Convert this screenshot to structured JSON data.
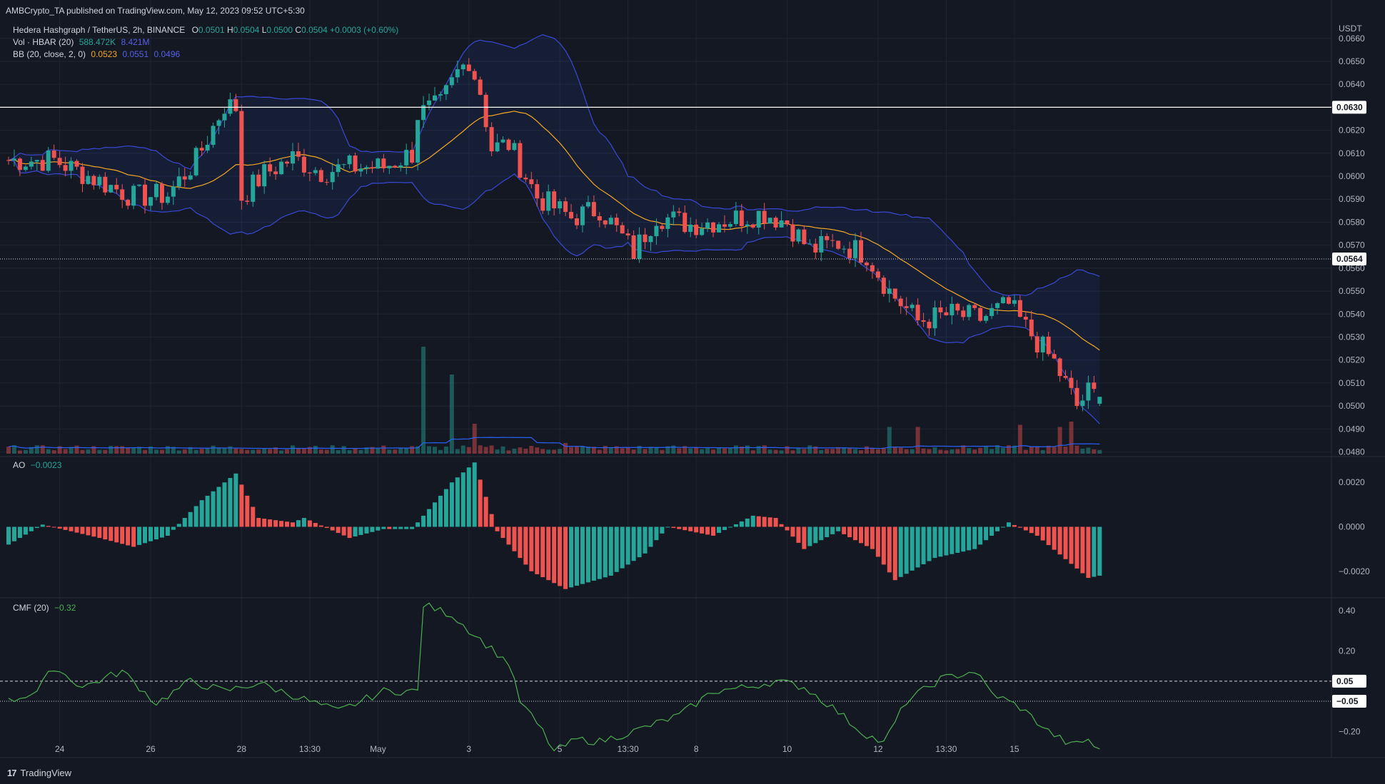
{
  "header": {
    "publisher": "AMBCrypto_TA published on TradingView.com, May 12, 2023 09:52 UTC+5:30",
    "symbol": "Hedera Hashgraph / TetherUS, 2h, BINANCE",
    "o_label": "O",
    "o": "0.0501",
    "h_label": "H",
    "h": "0.0504",
    "l_label": "L",
    "l": "0.0500",
    "c_label": "C",
    "c": "0.0504",
    "change": "+0.0003 (+0.60%)"
  },
  "indicators": {
    "vol_label": "Vol · HBAR (20)",
    "vol_value": "588.472K",
    "vol_ma": "8.421M",
    "bb_label": "BB (20, close, 2, 0)",
    "bb_basis": "0.0523",
    "bb_upper": "0.0551",
    "bb_lower": "0.0496",
    "ao_label": "AO",
    "ao_value": "−0.0023",
    "cmf_label": "CMF (20)",
    "cmf_value": "−0.32"
  },
  "axes": {
    "currency": "USDT",
    "price_ticks": [
      "0.0660",
      "0.0650",
      "0.0640",
      "0.0620",
      "0.0610",
      "0.0600",
      "0.0590",
      "0.0580",
      "0.0570",
      "0.0560",
      "0.0550",
      "0.0540",
      "0.0530",
      "0.0520",
      "0.0510",
      "0.0500",
      "0.0490",
      "0.0480"
    ],
    "ao_ticks": [
      "0.0020",
      "0.0000",
      "−0.0020"
    ],
    "cmf_ticks": [
      "0.40",
      "0.20",
      "−0.20"
    ],
    "time_labels": [
      "24",
      "26",
      "28",
      "13:30",
      "May",
      "3",
      "5",
      "13:30",
      "8",
      "10",
      "12",
      "13:30",
      "15"
    ]
  },
  "lines": {
    "resistance_label": "0.0630",
    "support_label": "0.0564",
    "cmf_upper_label": "0.05",
    "cmf_lower_label": "−0.05"
  },
  "colors": {
    "bg": "#141823",
    "up": "#26a69a",
    "down": "#ef5350",
    "bb_band": "#3949d6",
    "bb_basis": "#f5a623",
    "cmf": "#4caf50"
  },
  "branding": {
    "logo_text": "TradingView"
  },
  "chart_data": {
    "type": "candlestick",
    "timeframe": "2h",
    "price_ylim": [
      0.0478,
      0.0668
    ],
    "ao_ylim": [
      -0.0031,
      0.0031
    ],
    "cmf_ylim": [
      -0.33,
      0.45
    ],
    "resistance": 0.063,
    "support": 0.0564,
    "cmf_levels": [
      0.05,
      -0.05
    ],
    "keypoints": [
      [
        0,
        0.0607
      ],
      [
        8,
        0.0607
      ],
      [
        15,
        0.0599
      ],
      [
        22,
        0.0591
      ],
      [
        28,
        0.0592
      ],
      [
        33,
        0.0607
      ],
      [
        38,
        0.0631
      ],
      [
        40,
        0.063
      ],
      [
        41,
        0.0591
      ],
      [
        45,
        0.0601
      ],
      [
        50,
        0.0608
      ],
      [
        55,
        0.0602
      ],
      [
        60,
        0.0604
      ],
      [
        66,
        0.0604
      ],
      [
        71,
        0.061
      ],
      [
        72,
        0.0627
      ],
      [
        76,
        0.0631
      ],
      [
        79,
        0.0645
      ],
      [
        81,
        0.0651
      ],
      [
        83,
        0.0637
      ],
      [
        85,
        0.0612
      ],
      [
        88,
        0.0614
      ],
      [
        93,
        0.0591
      ],
      [
        99,
        0.0582
      ],
      [
        104,
        0.0586
      ],
      [
        110,
        0.0567
      ],
      [
        114,
        0.0583
      ],
      [
        120,
        0.0579
      ],
      [
        126,
        0.0581
      ],
      [
        133,
        0.0584
      ],
      [
        137,
        0.058
      ],
      [
        141,
        0.0568
      ],
      [
        146,
        0.0571
      ],
      [
        151,
        0.0566
      ],
      [
        155,
        0.055
      ],
      [
        160,
        0.0537
      ],
      [
        166,
        0.054
      ],
      [
        171,
        0.0538
      ],
      [
        176,
        0.0544
      ],
      [
        179,
        0.0534
      ],
      [
        184,
        0.0519
      ],
      [
        188,
        0.05
      ],
      [
        190,
        0.0506
      ],
      [
        192,
        0.0504
      ]
    ],
    "vol_spikes": [
      [
        73,
        1.0
      ],
      [
        78,
        0.74
      ],
      [
        82,
        0.28
      ],
      [
        98,
        0.1
      ],
      [
        155,
        0.25
      ],
      [
        160,
        0.25
      ],
      [
        178,
        0.27
      ],
      [
        185,
        0.25
      ],
      [
        187,
        0.3
      ]
    ],
    "ao_keypoints": [
      [
        0,
        -0.0008
      ],
      [
        6,
        0.0001
      ],
      [
        16,
        -0.0005
      ],
      [
        22,
        -0.0009
      ],
      [
        28,
        -0.0004
      ],
      [
        34,
        0.0012
      ],
      [
        40,
        0.0024
      ],
      [
        44,
        0.0004
      ],
      [
        50,
        0.0002
      ],
      [
        52,
        0.0004
      ],
      [
        60,
        -0.0005
      ],
      [
        66,
        -0.0001
      ],
      [
        71,
        -0.0001
      ],
      [
        78,
        0.002
      ],
      [
        82,
        0.0029
      ],
      [
        86,
        -0.0002
      ],
      [
        92,
        -0.002
      ],
      [
        98,
        -0.0028
      ],
      [
        106,
        -0.0022
      ],
      [
        112,
        -0.0012
      ],
      [
        116,
        0.0
      ],
      [
        124,
        -0.0004
      ],
      [
        131,
        0.0005
      ],
      [
        135,
        0.0004
      ],
      [
        140,
        -0.001
      ],
      [
        146,
        -0.0002
      ],
      [
        152,
        -0.001
      ],
      [
        156,
        -0.0024
      ],
      [
        163,
        -0.0014
      ],
      [
        170,
        -0.001
      ],
      [
        176,
        0.0002
      ],
      [
        181,
        -0.0004
      ],
      [
        190,
        -0.0023
      ],
      [
        192,
        -0.0022
      ]
    ],
    "cmf_keypoints": [
      [
        0,
        -0.05
      ],
      [
        5,
        0.0
      ],
      [
        8,
        0.12
      ],
      [
        13,
        0.02
      ],
      [
        20,
        0.1
      ],
      [
        26,
        -0.06
      ],
      [
        32,
        0.05
      ],
      [
        38,
        0.0
      ],
      [
        44,
        0.04
      ],
      [
        50,
        -0.02
      ],
      [
        58,
        -0.1
      ],
      [
        66,
        0.0
      ],
      [
        72,
        0.0
      ],
      [
        73,
        0.43
      ],
      [
        78,
        0.38
      ],
      [
        82,
        0.28
      ],
      [
        88,
        0.14
      ],
      [
        90,
        -0.05
      ],
      [
        94,
        -0.2
      ],
      [
        96,
        -0.3
      ],
      [
        100,
        -0.24
      ],
      [
        104,
        -0.25
      ],
      [
        110,
        -0.2
      ],
      [
        118,
        -0.12
      ],
      [
        124,
        0.0
      ],
      [
        130,
        0.02
      ],
      [
        135,
        0.05
      ],
      [
        140,
        0.02
      ],
      [
        145,
        -0.08
      ],
      [
        150,
        -0.2
      ],
      [
        154,
        -0.26
      ],
      [
        158,
        -0.05
      ],
      [
        164,
        0.06
      ],
      [
        170,
        0.1
      ],
      [
        173,
        -0.01
      ],
      [
        178,
        -0.08
      ],
      [
        183,
        -0.2
      ],
      [
        187,
        -0.27
      ],
      [
        190,
        -0.24
      ],
      [
        192,
        -0.3
      ]
    ]
  }
}
